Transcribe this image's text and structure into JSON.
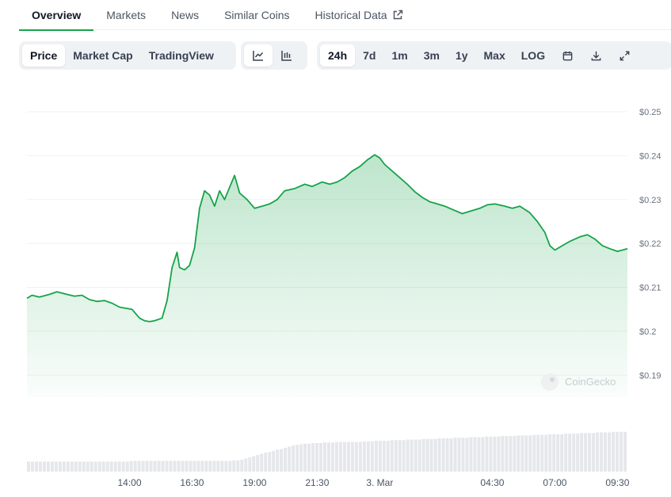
{
  "tabs": [
    {
      "label": "Overview",
      "active": true
    },
    {
      "label": "Markets",
      "active": false
    },
    {
      "label": "News",
      "active": false
    },
    {
      "label": "Similar Coins",
      "active": false
    },
    {
      "label": "Historical Data",
      "active": false,
      "icon": "external-link-icon"
    }
  ],
  "chart_types": [
    {
      "label": "Price",
      "active": true
    },
    {
      "label": "Market Cap",
      "active": false
    },
    {
      "label": "TradingView",
      "active": false
    }
  ],
  "view_icons": [
    {
      "icon": "line-chart-icon",
      "active": true
    },
    {
      "icon": "candlestick-chart-icon",
      "active": false
    }
  ],
  "ranges": [
    {
      "label": "24h",
      "active": true
    },
    {
      "label": "7d",
      "active": false
    },
    {
      "label": "1m",
      "active": false
    },
    {
      "label": "3m",
      "active": false
    },
    {
      "label": "1y",
      "active": false
    },
    {
      "label": "Max",
      "active": false
    },
    {
      "label": "LOG",
      "active": false
    }
  ],
  "tool_icons": [
    "calendar-icon",
    "download-icon",
    "fullscreen-icon"
  ],
  "watermark": "CoinGecko",
  "colors": {
    "line": "#16a34a",
    "accent": "#16a34a",
    "volume": "#e5e7eb"
  },
  "chart_data": {
    "type": "area",
    "title": "",
    "ylim": [
      0.185,
      0.25
    ],
    "y_ticks": [
      {
        "value": 0.25,
        "label": "$0.25"
      },
      {
        "value": 0.24,
        "label": "$0.24"
      },
      {
        "value": 0.23,
        "label": "$0.23"
      },
      {
        "value": 0.22,
        "label": "$0.22"
      },
      {
        "value": 0.21,
        "label": "$0.21"
      },
      {
        "value": 0.2,
        "label": "$0.2"
      },
      {
        "value": 0.19,
        "label": "$0.19"
      }
    ],
    "x_ticks": [
      {
        "value": 14.0,
        "label": "14:00"
      },
      {
        "value": 16.5,
        "label": "16:30"
      },
      {
        "value": 19.0,
        "label": "19:00"
      },
      {
        "value": 21.5,
        "label": "21:30"
      },
      {
        "value": 24.0,
        "label": "3. Mar"
      },
      {
        "value": 28.5,
        "label": "04:30"
      },
      {
        "value": 31.0,
        "label": "07:00"
      },
      {
        "value": 33.5,
        "label": "09:30"
      }
    ],
    "xlim": [
      9.9,
      33.9
    ],
    "grid": true,
    "series": [
      {
        "x": [
          9.9,
          10.1,
          10.4,
          10.8,
          11.1,
          11.5,
          11.8,
          12.1,
          12.4,
          12.7,
          13.0,
          13.3,
          13.6,
          13.9,
          14.1,
          14.4,
          14.6,
          14.8,
          15.0,
          15.3,
          15.5,
          15.7,
          15.9,
          16.0,
          16.2,
          16.4,
          16.6,
          16.8,
          17.0,
          17.2,
          17.4,
          17.6,
          17.8,
          18.0,
          18.2,
          18.4,
          18.7,
          19.0,
          19.3,
          19.6,
          19.9,
          20.2,
          20.6,
          21.0,
          21.3,
          21.7,
          22.0,
          22.3,
          22.6,
          22.9,
          23.2,
          23.5,
          23.8,
          24.0,
          24.2,
          24.5,
          24.8,
          25.1,
          25.4,
          25.7,
          26.0,
          26.3,
          26.6,
          27.0,
          27.3,
          27.7,
          28.0,
          28.3,
          28.6,
          29.0,
          29.3,
          29.6,
          30.0,
          30.3,
          30.6,
          30.8,
          31.0,
          31.3,
          31.6,
          32.0,
          32.3,
          32.6,
          32.9,
          33.2,
          33.5,
          33.9
        ],
        "y": [
          0.2075,
          0.2082,
          0.2078,
          0.2084,
          0.209,
          0.2084,
          0.208,
          0.2082,
          0.2072,
          0.2068,
          0.207,
          0.2064,
          0.2055,
          0.2052,
          0.205,
          0.203,
          0.2024,
          0.2022,
          0.2024,
          0.203,
          0.207,
          0.2145,
          0.218,
          0.2145,
          0.214,
          0.215,
          0.219,
          0.228,
          0.232,
          0.231,
          0.2285,
          0.232,
          0.23,
          0.2328,
          0.2355,
          0.2315,
          0.23,
          0.228,
          0.2285,
          0.229,
          0.23,
          0.232,
          0.2325,
          0.2335,
          0.233,
          0.234,
          0.2335,
          0.234,
          0.235,
          0.2365,
          0.2375,
          0.239,
          0.2402,
          0.2395,
          0.238,
          0.2365,
          0.235,
          0.2335,
          0.2318,
          0.2305,
          0.2295,
          0.229,
          0.2285,
          0.2275,
          0.2268,
          0.2275,
          0.228,
          0.2288,
          0.229,
          0.2285,
          0.228,
          0.2285,
          0.227,
          0.225,
          0.2225,
          0.2195,
          0.2185,
          0.2195,
          0.2205,
          0.2215,
          0.222,
          0.221,
          0.2195,
          0.2188,
          0.2182,
          0.2188
        ]
      }
    ],
    "volume": [
      0.17,
      0.17,
      0.17,
      0.17,
      0.17,
      0.17,
      0.17,
      0.17,
      0.17,
      0.17,
      0.17,
      0.17,
      0.17,
      0.17,
      0.17,
      0.17,
      0.17,
      0.17,
      0.17,
      0.17,
      0.17,
      0.17,
      0.17,
      0.17,
      0.17,
      0.17,
      0.18,
      0.18,
      0.18,
      0.18,
      0.18,
      0.18,
      0.18,
      0.18,
      0.18,
      0.18,
      0.18,
      0.18,
      0.18,
      0.18,
      0.18,
      0.18,
      0.18,
      0.18,
      0.18,
      0.18,
      0.18,
      0.18,
      0.18,
      0.18,
      0.18,
      0.18,
      0.19,
      0.19,
      0.2,
      0.22,
      0.24,
      0.26,
      0.28,
      0.3,
      0.32,
      0.33,
      0.35,
      0.37,
      0.38,
      0.4,
      0.42,
      0.44,
      0.45,
      0.46,
      0.47,
      0.47,
      0.48,
      0.48,
      0.48,
      0.49,
      0.49,
      0.49,
      0.5,
      0.5,
      0.5,
      0.5,
      0.5,
      0.5,
      0.5,
      0.51,
      0.51,
      0.51,
      0.52,
      0.52,
      0.52,
      0.52,
      0.53,
      0.53,
      0.53,
      0.53,
      0.54,
      0.54,
      0.54,
      0.54,
      0.55,
      0.55,
      0.55,
      0.55,
      0.56,
      0.56,
      0.56,
      0.56,
      0.57,
      0.57,
      0.57,
      0.57,
      0.58,
      0.58,
      0.58,
      0.58,
      0.59,
      0.59,
      0.59,
      0.59,
      0.6,
      0.6,
      0.6,
      0.6,
      0.61,
      0.61,
      0.61,
      0.61,
      0.62,
      0.62,
      0.62,
      0.62,
      0.63,
      0.63,
      0.63,
      0.63,
      0.64,
      0.64,
      0.64,
      0.64,
      0.65,
      0.65,
      0.65,
      0.65,
      0.66,
      0.66,
      0.66,
      0.66,
      0.67,
      0.67,
      0.67,
      0.67
    ]
  }
}
